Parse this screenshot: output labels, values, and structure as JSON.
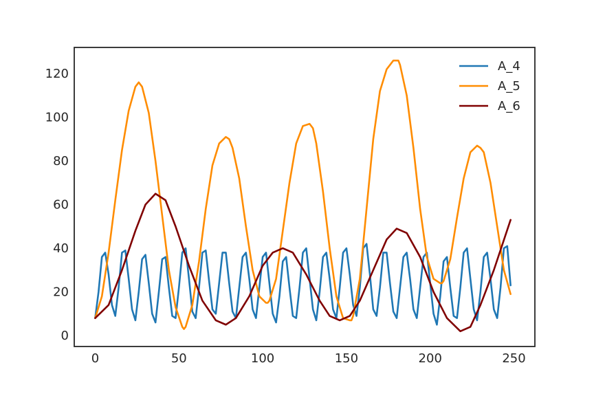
{
  "chart_data": {
    "type": "line",
    "title": "",
    "xlabel": "",
    "ylabel": "",
    "xlim": [
      -12.5,
      262.5
    ],
    "ylim": [
      -5,
      132
    ],
    "grid": false,
    "legend_position": "top-right",
    "x_ticks": [
      0,
      50,
      100,
      150,
      200,
      250
    ],
    "y_ticks": [
      0,
      20,
      40,
      60,
      80,
      100,
      120
    ],
    "series": [
      {
        "name": "A_4",
        "color": "#1f77b4",
        "x": [
          0,
          2,
          4,
          6,
          8,
          10,
          12,
          14,
          16,
          18,
          20,
          22,
          24,
          26,
          28,
          30,
          32,
          34,
          36,
          38,
          40,
          42,
          44,
          46,
          48,
          50,
          52,
          54,
          56,
          58,
          60,
          62,
          64,
          66,
          68,
          70,
          72,
          74,
          76,
          78,
          80,
          82,
          84,
          86,
          88,
          90,
          92,
          94,
          96,
          98,
          100,
          102,
          104,
          106,
          108,
          110,
          112,
          114,
          116,
          118,
          120,
          122,
          124,
          126,
          128,
          130,
          132,
          134,
          136,
          138,
          140,
          142,
          144,
          146,
          148,
          150,
          152,
          154,
          156,
          158,
          160,
          162,
          164,
          166,
          168,
          170,
          172,
          174,
          176,
          178,
          180,
          182,
          184,
          186,
          188,
          190,
          192,
          194,
          196,
          198,
          200,
          202,
          204,
          206,
          208,
          210,
          212,
          214,
          216,
          218,
          220,
          222,
          224,
          226,
          228,
          230,
          232,
          234,
          236,
          238,
          240,
          242,
          244,
          246,
          248
        ],
        "values": [
          8,
          20,
          36,
          38,
          28,
          14,
          9,
          22,
          38,
          39,
          26,
          12,
          7,
          20,
          35,
          37,
          24,
          10,
          6,
          20,
          35,
          36,
          22,
          9,
          8,
          22,
          38,
          40,
          26,
          11,
          8,
          22,
          38,
          39,
          25,
          12,
          10,
          24,
          38,
          38,
          24,
          11,
          8,
          22,
          36,
          38,
          26,
          12,
          8,
          22,
          36,
          38,
          24,
          10,
          6,
          18,
          34,
          36,
          22,
          9,
          8,
          22,
          38,
          40,
          26,
          12,
          7,
          20,
          36,
          38,
          26,
          12,
          8,
          22,
          38,
          40,
          28,
          14,
          9,
          22,
          40,
          42,
          28,
          12,
          9,
          22,
          38,
          38,
          24,
          11,
          8,
          22,
          36,
          38,
          26,
          12,
          8,
          22,
          36,
          38,
          24,
          10,
          5,
          18,
          34,
          36,
          22,
          9,
          8,
          22,
          38,
          40,
          26,
          12,
          7,
          20,
          36,
          38,
          26,
          12,
          8,
          22,
          40,
          41,
          23
        ]
      },
      {
        "name": "A_5",
        "color": "#ff8c00",
        "x": [
          0,
          4,
          8,
          12,
          16,
          20,
          24,
          26,
          28,
          32,
          36,
          40,
          44,
          48,
          52,
          53,
          54,
          58,
          62,
          66,
          70,
          74,
          78,
          80,
          82,
          86,
          90,
          94,
          98,
          102,
          103,
          104,
          108,
          112,
          116,
          120,
          124,
          128,
          130,
          132,
          136,
          140,
          144,
          148,
          152,
          153,
          154,
          158,
          162,
          166,
          170,
          174,
          178,
          181,
          182,
          186,
          190,
          194,
          198,
          202,
          206,
          207,
          208,
          212,
          216,
          220,
          224,
          228,
          230,
          232,
          236,
          240,
          244,
          248
        ],
        "values": [
          8,
          18,
          38,
          62,
          85,
          103,
          114,
          116,
          114,
          102,
          80,
          55,
          30,
          13,
          4,
          3,
          4,
          14,
          34,
          58,
          78,
          88,
          91,
          90,
          86,
          72,
          50,
          30,
          18,
          15,
          15,
          16,
          26,
          48,
          70,
          88,
          96,
          97,
          95,
          88,
          66,
          40,
          18,
          8,
          7,
          7,
          9,
          26,
          58,
          90,
          112,
          122,
          126,
          126,
          124,
          110,
          86,
          58,
          36,
          26,
          24,
          24,
          25,
          35,
          54,
          72,
          84,
          87,
          86,
          84,
          70,
          50,
          30,
          19
        ]
      },
      {
        "name": "A_6",
        "color": "#800000",
        "x": [
          0,
          8,
          16,
          24,
          30,
          36,
          42,
          48,
          56,
          64,
          72,
          78,
          84,
          92,
          100,
          106,
          112,
          118,
          126,
          134,
          140,
          146,
          152,
          158,
          166,
          174,
          180,
          186,
          194,
          202,
          210,
          218,
          224,
          230,
          238,
          248
        ],
        "values": [
          8,
          14,
          30,
          48,
          60,
          65,
          62,
          50,
          32,
          16,
          7,
          5,
          8,
          18,
          32,
          38,
          40,
          38,
          28,
          16,
          9,
          7,
          9,
          16,
          30,
          44,
          49,
          47,
          36,
          20,
          8,
          2,
          4,
          14,
          30,
          53
        ]
      }
    ]
  }
}
